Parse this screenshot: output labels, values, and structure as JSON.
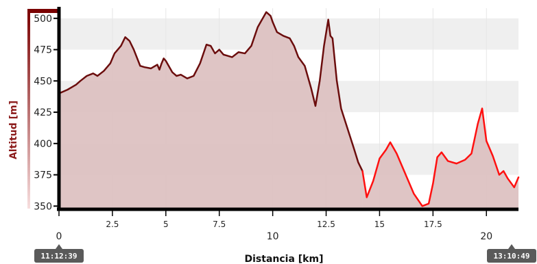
{
  "chart_data": {
    "type": "area",
    "xlabel": "Distancia [km]",
    "ylabel": "Altitud [m]",
    "xlim": [
      0,
      21.5
    ],
    "ylim": [
      348,
      507
    ],
    "grid": true,
    "x_ticks": [
      {
        "value": 0,
        "label": "0",
        "major": true
      },
      {
        "value": 2.5,
        "label": "2.5",
        "major": false
      },
      {
        "value": 5,
        "label": "5",
        "major": false
      },
      {
        "value": 7.5,
        "label": "7.5",
        "major": false
      },
      {
        "value": 10,
        "label": "10",
        "major": true
      },
      {
        "value": 12.5,
        "label": "12.5",
        "major": false
      },
      {
        "value": 15,
        "label": "15",
        "major": false
      },
      {
        "value": 17.5,
        "label": "17.5",
        "major": false
      },
      {
        "value": 20,
        "label": "20",
        "major": true
      }
    ],
    "y_ticks": [
      {
        "value": 350,
        "label": "350"
      },
      {
        "value": 375,
        "label": "375"
      },
      {
        "value": 400,
        "label": "400"
      },
      {
        "value": 425,
        "label": "425"
      },
      {
        "value": 450,
        "label": "450"
      },
      {
        "value": 475,
        "label": "475"
      },
      {
        "value": 500,
        "label": "500"
      }
    ],
    "series": [
      {
        "color": "#6b0d0d",
        "fill": "#dcc0c0",
        "x": [
          0,
          0.4,
          0.8,
          1.0,
          1.3,
          1.6,
          1.8,
          2.1,
          2.4,
          2.6,
          2.9,
          3.1,
          3.3,
          3.5,
          3.8,
          4.0,
          4.3,
          4.6,
          4.7,
          4.8,
          4.9,
          5.0,
          5.1,
          5.3,
          5.5,
          5.7,
          6.0,
          6.3,
          6.6,
          6.9,
          7.1,
          7.3,
          7.5,
          7.7,
          7.9,
          8.1,
          8.4,
          8.7,
          9.0,
          9.3,
          9.5,
          9.7,
          9.9,
          10.0,
          10.2,
          10.5,
          10.8,
          11.0,
          11.2,
          11.5,
          11.8,
          12.0,
          12.2,
          12.4,
          12.6,
          12.7,
          12.8,
          13.0,
          13.2,
          13.5,
          13.8,
          14.0,
          14.2
        ],
        "values": [
          440,
          443,
          447,
          450,
          454,
          456,
          454,
          458,
          464,
          472,
          478,
          485,
          482,
          475,
          462,
          461,
          460,
          463,
          459,
          464,
          468,
          466,
          463,
          457,
          454,
          455,
          452,
          454,
          464,
          479,
          478,
          472,
          475,
          471,
          470,
          469,
          473,
          472,
          478,
          493,
          499,
          505,
          502,
          497,
          489,
          486,
          484,
          478,
          469,
          462,
          444,
          430,
          450,
          478,
          499,
          486,
          484,
          450,
          428,
          412,
          396,
          385,
          378
        ]
      },
      {
        "color": "#ff1010",
        "fill": "#dcc0c0",
        "x": [
          14.2,
          14.4,
          14.7,
          15.0,
          15.3,
          15.5,
          15.8,
          16.2,
          16.6,
          17.0,
          17.3,
          17.5,
          17.7,
          17.9,
          18.2,
          18.6,
          19.0,
          19.3,
          19.6,
          19.8,
          20.0,
          20.3,
          20.6,
          20.8,
          21.0,
          21.3,
          21.5
        ],
        "values": [
          378,
          357,
          370,
          388,
          395,
          401,
          392,
          376,
          360,
          350,
          352,
          368,
          389,
          393,
          386,
          384,
          387,
          392,
          416,
          428,
          402,
          390,
          375,
          378,
          372,
          365,
          373
        ]
      }
    ],
    "start_time": "11:12:39",
    "end_time": "13:10:49"
  }
}
